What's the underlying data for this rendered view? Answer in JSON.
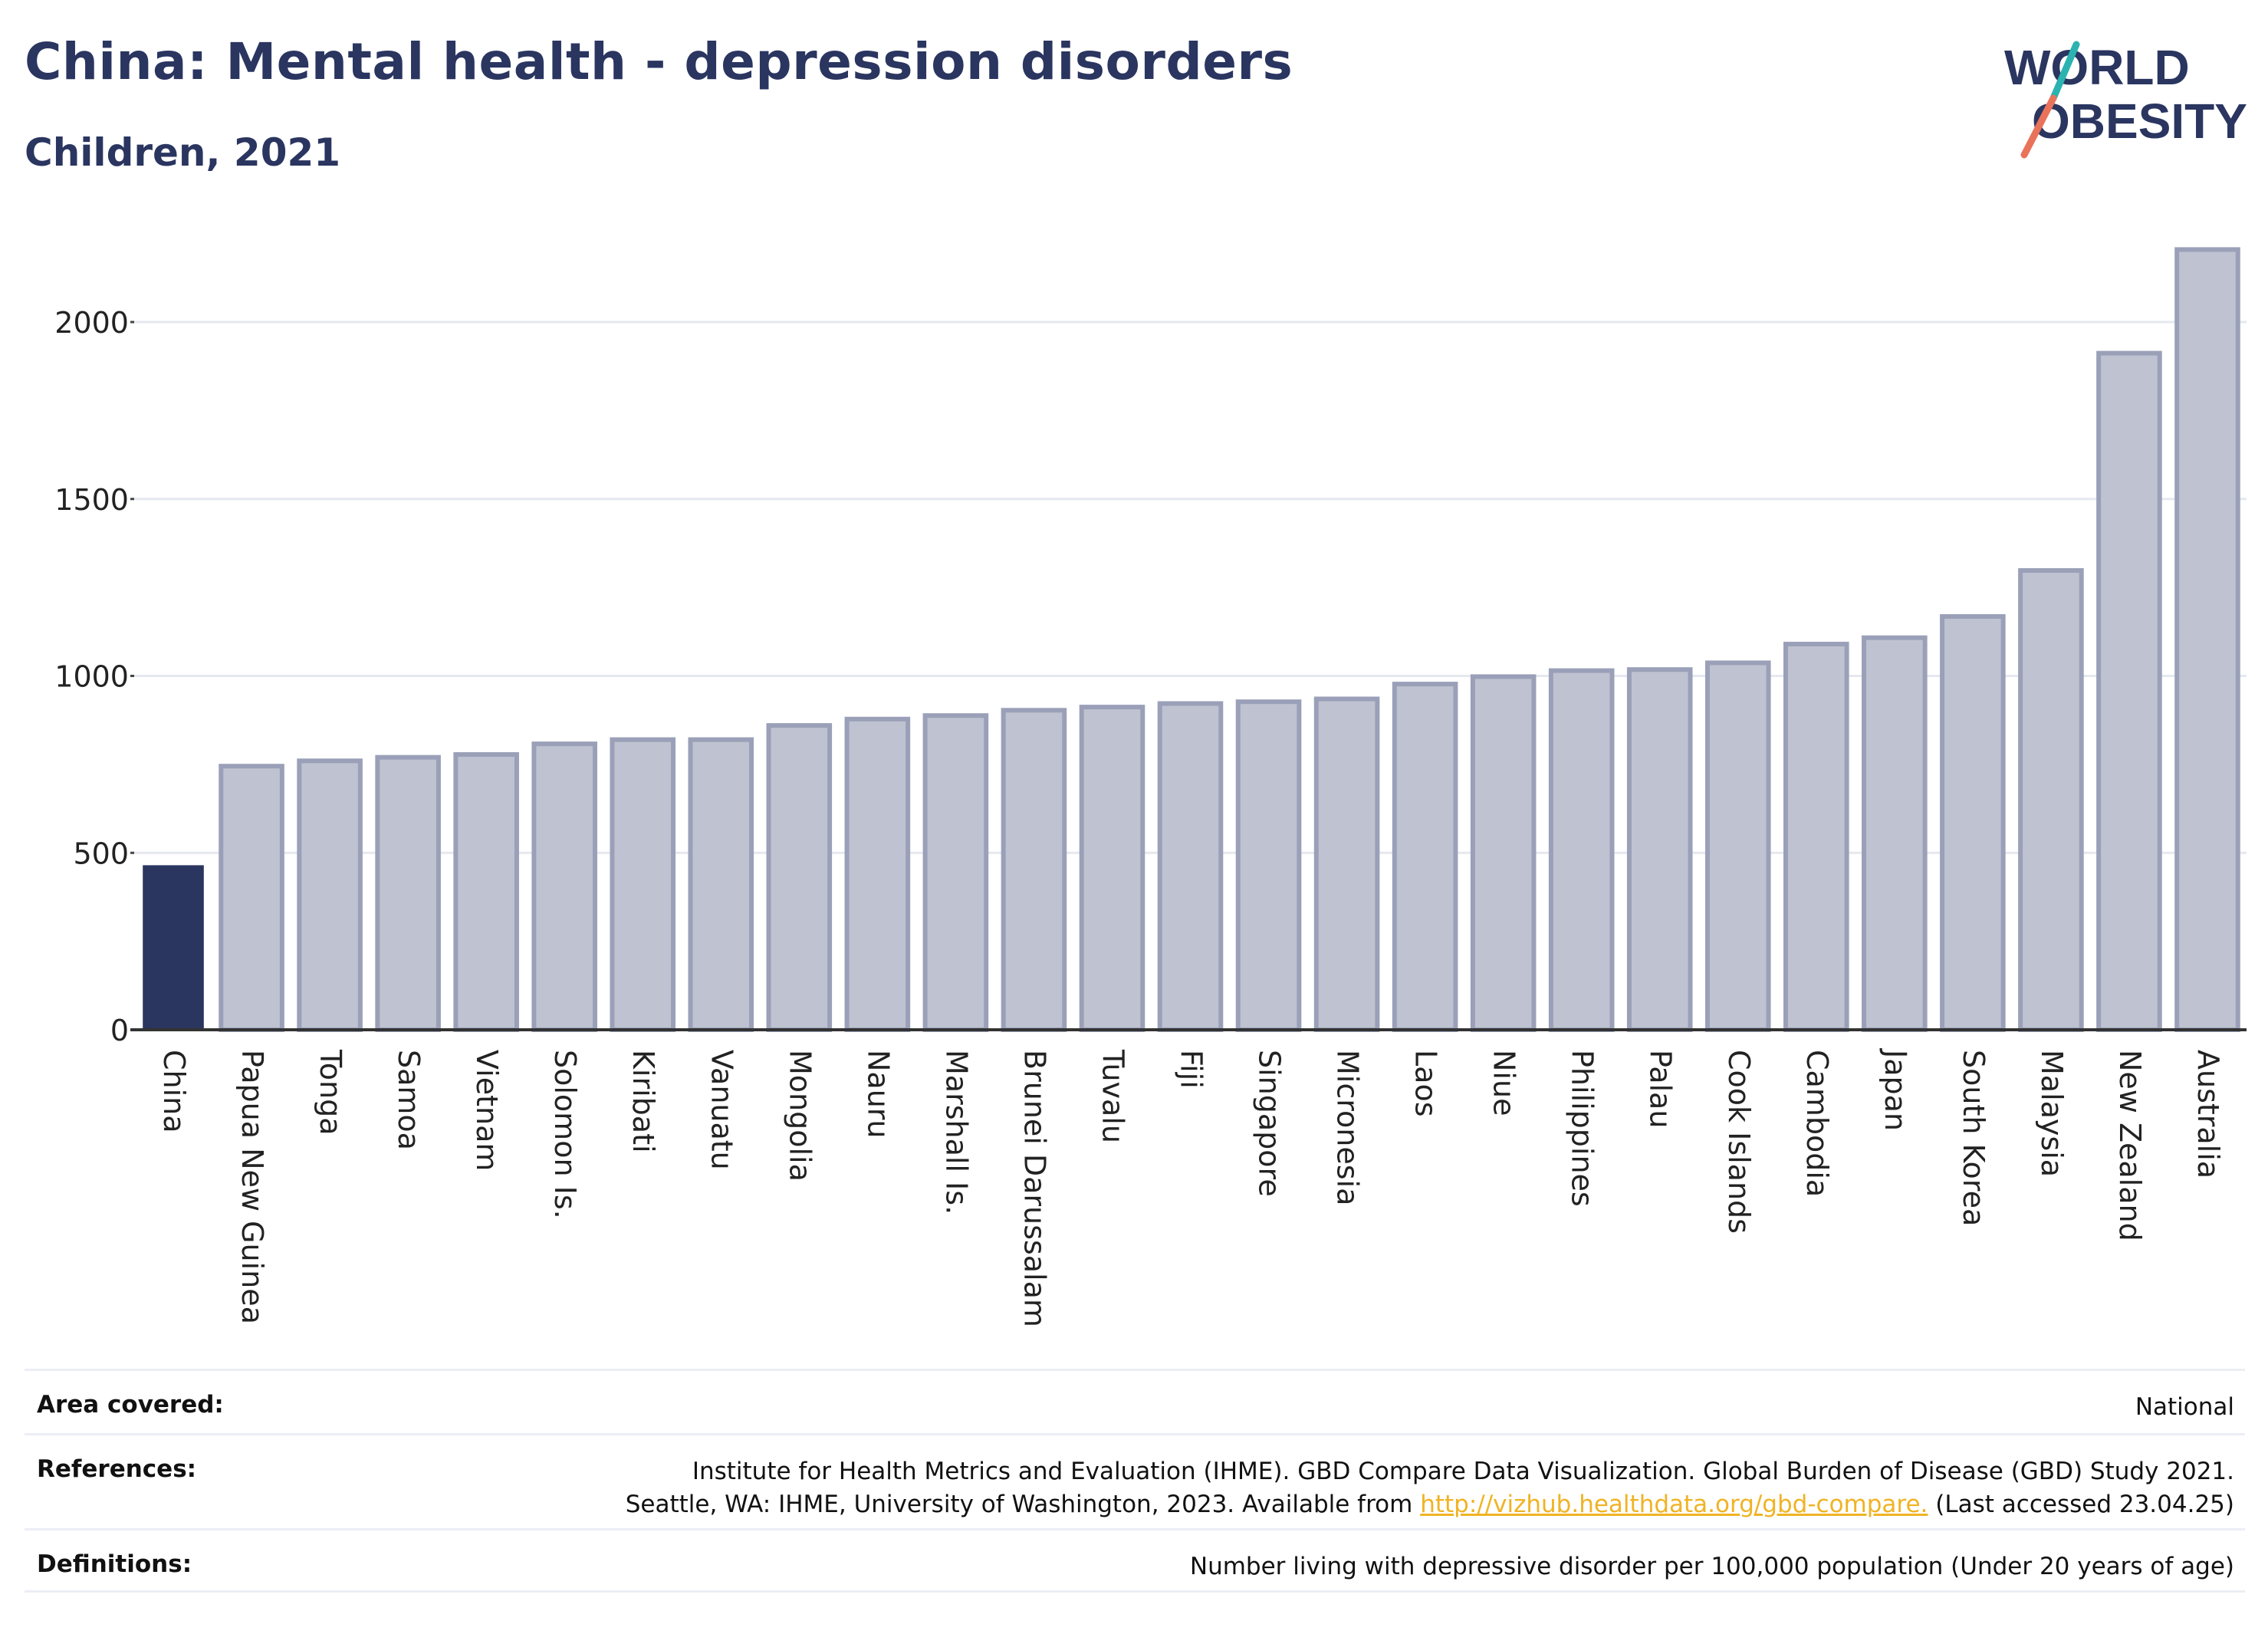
{
  "header": {
    "title": "China: Mental health - depression disorders",
    "subtitle": "Children, 2021",
    "logo_line1": "WORLD",
    "logo_line2": "OBESITY"
  },
  "colors": {
    "highlight_bar": "#2a3560",
    "bar_fill": "#bfc2d0",
    "bar_stroke": "#9aa0b8",
    "text": "#2a3560",
    "link": "#f0b324",
    "logo_teal": "#2bb3b1",
    "logo_coral": "#e9725b"
  },
  "chart_data": {
    "type": "bar",
    "title": "China: Mental health - depression disorders",
    "subtitle": "Children, 2021",
    "categories": [
      "China",
      "Papua New Guinea",
      "Tonga",
      "Samoa",
      "Vietnam",
      "Solomon Is.",
      "Kiribati",
      "Vanuatu",
      "Mongolia",
      "Nauru",
      "Marshall Is.",
      "Brunei Darussalam",
      "Tuvalu",
      "Fiji",
      "Singapore",
      "Micronesia",
      "Laos",
      "Niue",
      "Philippines",
      "Palau",
      "Cook Islands",
      "Cambodia",
      "Japan",
      "South Korea",
      "Malaysia",
      "New Zealand",
      "Australia"
    ],
    "values": [
      465,
      745,
      760,
      770,
      778,
      808,
      820,
      820,
      860,
      878,
      888,
      903,
      912,
      922,
      927,
      935,
      977,
      998,
      1015,
      1018,
      1037,
      1090,
      1108,
      1168,
      1298,
      1912,
      2205
    ],
    "highlight": "China",
    "yticks": [
      0,
      500,
      1000,
      1500,
      2000
    ],
    "ylim": [
      0,
      2250
    ],
    "grid": true,
    "xlabel": "",
    "ylabel": ""
  },
  "info": {
    "area_label": "Area covered:",
    "area_value": "National",
    "references_label": "References:",
    "references_line1": "Institute for Health Metrics and Evaluation (IHME). GBD Compare Data Visualization. Global Burden of Disease (GBD) Study 2021.",
    "references_line2_pre": "Seattle, WA: IHME, University of Washington, 2023. Available from ",
    "references_link": "http://vizhub.healthdata.org/gbd-compare.",
    "references_line2_post": " (Last accessed 23.04.25)",
    "definitions_label": "Definitions:",
    "definitions_value": "Number living with depressive disorder per 100,000 population (Under 20 years of age)"
  }
}
